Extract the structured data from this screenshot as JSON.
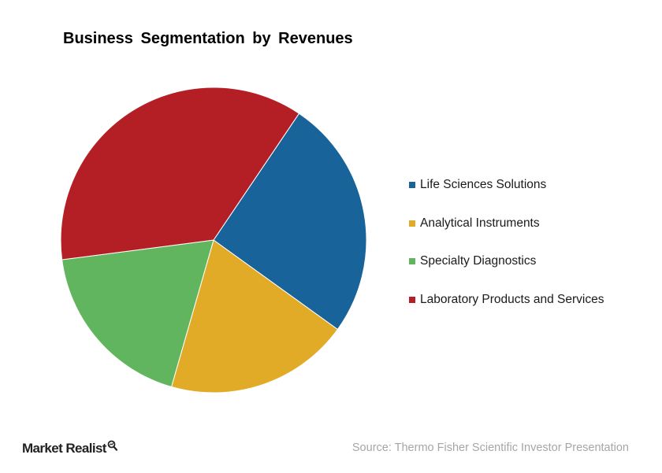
{
  "chart_data": {
    "type": "pie",
    "title": "Business Segmentation by Revenues",
    "slices": [
      {
        "label": "Life Sciences Solutions",
        "value": 25.5,
        "color": "#17639a"
      },
      {
        "label": "Analytical Instruments",
        "value": 19.5,
        "color": "#e2ab27"
      },
      {
        "label": "Specialty Diagnostics",
        "value": 18.5,
        "color": "#61b55e"
      },
      {
        "label": "Laboratory Products and Services",
        "value": 36.5,
        "color": "#b41f25"
      }
    ],
    "start_direction": "upper-right, proceeding clockwise",
    "legend_position": "right"
  },
  "brand": {
    "name": "Market Realist",
    "icon": "magnifier-icon"
  },
  "source": "Source: Thermo Fisher Scientific Investor Presentation"
}
